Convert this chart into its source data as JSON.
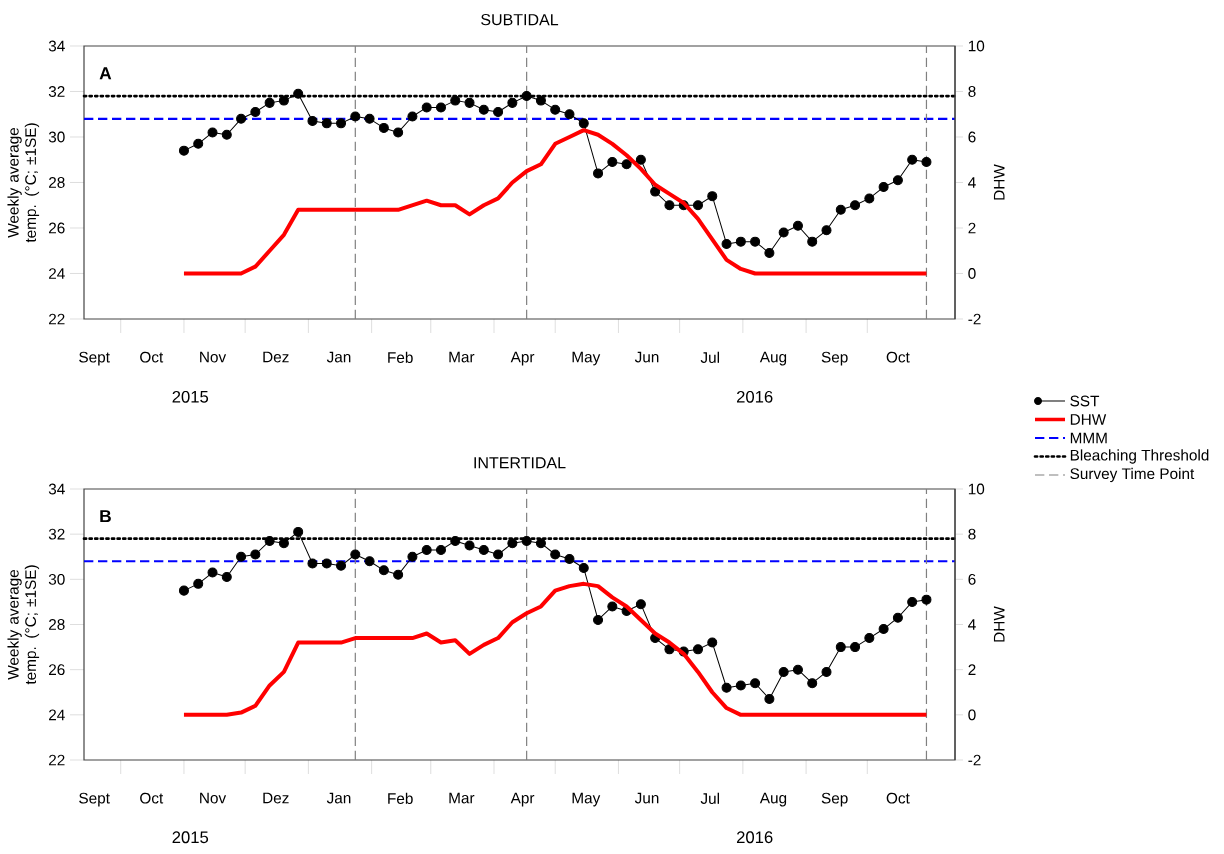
{
  "chart_data": [
    {
      "type": "line",
      "title": "SUBTIDAL",
      "ylabel": "Weekly average temp. (°C; ±1SE)",
      "y2label": "DHW",
      "annotations": [
        "A",
        "2015",
        "2016"
      ],
      "x": [
        "2015-11-01",
        "2015-11-08",
        "2015-11-15",
        "2015-11-22",
        "2015-11-29",
        "2015-12-06",
        "2015-12-13",
        "2015-12-20",
        "2015-12-27",
        "2016-01-03",
        "2016-01-10",
        "2016-01-17",
        "2016-01-24",
        "2016-01-31",
        "2016-02-07",
        "2016-02-14",
        "2016-02-21",
        "2016-02-28",
        "2016-03-06",
        "2016-03-13",
        "2016-03-20",
        "2016-03-27",
        "2016-04-03",
        "2016-04-10",
        "2016-04-17",
        "2016-04-24",
        "2016-05-01",
        "2016-05-08",
        "2016-05-15",
        "2016-05-22",
        "2016-05-29",
        "2016-06-05",
        "2016-06-12",
        "2016-06-19",
        "2016-06-26",
        "2016-07-03",
        "2016-07-10",
        "2016-07-17",
        "2016-07-24",
        "2016-07-31",
        "2016-08-07",
        "2016-08-14",
        "2016-08-21",
        "2016-08-28",
        "2016-09-04",
        "2016-09-11",
        "2016-09-18",
        "2016-09-25",
        "2016-10-02",
        "2016-10-09",
        "2016-10-16",
        "2016-10-23",
        "2016-10-30"
      ],
      "xlim": [
        "2015-09-13",
        "2016-11-13"
      ],
      "xticks": [
        {
          "value": "2015-10-01",
          "label": null
        },
        {
          "value": "2015-11-01",
          "label": null
        },
        {
          "value": "2015-12-01",
          "label": null
        },
        {
          "value": "2016-01-01",
          "label": null
        },
        {
          "value": "2016-02-01",
          "label": null
        },
        {
          "value": "2016-03-01",
          "label": null
        },
        {
          "value": "2016-04-01",
          "label": null
        },
        {
          "value": "2016-05-01",
          "label": null
        },
        {
          "value": "2016-06-01",
          "label": null
        },
        {
          "value": "2016-07-01",
          "label": null
        },
        {
          "value": "2016-08-01",
          "label": null
        },
        {
          "value": "2016-09-01",
          "label": null
        },
        {
          "value": "2016-10-01",
          "label": null
        },
        {
          "value": "2015-09-18",
          "label": "Sept"
        },
        {
          "value": "2015-10-16",
          "label": "Oct"
        },
        {
          "value": "2015-11-15",
          "label": "Nov"
        },
        {
          "value": "2015-12-16",
          "label": "Dez"
        },
        {
          "value": "2016-01-16",
          "label": "Jan"
        },
        {
          "value": "2016-02-15",
          "label": "Feb"
        },
        {
          "value": "2016-03-16",
          "label": "Mar"
        },
        {
          "value": "2016-04-15",
          "label": "Apr"
        },
        {
          "value": "2016-05-16",
          "label": "May"
        },
        {
          "value": "2016-06-15",
          "label": "Jun"
        },
        {
          "value": "2016-07-16",
          "label": "Jul"
        },
        {
          "value": "2016-08-16",
          "label": "Aug"
        },
        {
          "value": "2016-09-15",
          "label": "Sep"
        },
        {
          "value": "2016-10-16",
          "label": "Oct"
        }
      ],
      "ylim": [
        22,
        34
      ],
      "yticks": [
        22,
        24,
        26,
        28,
        30,
        32,
        34
      ],
      "y2lim": [
        -2,
        10
      ],
      "y2ticks": [
        -2,
        0,
        2,
        4,
        6,
        8,
        10
      ],
      "legend": "right",
      "series": [
        {
          "name": "SST",
          "color": "#000000",
          "marker": "circle",
          "values": [
            29.4,
            29.7,
            30.2,
            30.1,
            30.8,
            31.1,
            31.5,
            31.6,
            31.9,
            30.7,
            30.6,
            30.6,
            30.9,
            30.8,
            30.4,
            30.2,
            30.9,
            31.3,
            31.3,
            31.6,
            31.5,
            31.2,
            31.1,
            31.5,
            31.8,
            31.6,
            31.2,
            31.0,
            30.6,
            28.4,
            28.9,
            28.8,
            29.0,
            27.6,
            27.0,
            27.0,
            27.0,
            27.4,
            25.3,
            25.4,
            25.4,
            24.9,
            25.8,
            26.1,
            25.4,
            25.9,
            26.8,
            27.0,
            27.3,
            27.8,
            28.1,
            29.0,
            28.9
          ]
        },
        {
          "name": "DHW",
          "color": "#ff0000",
          "axis": "y2",
          "values": [
            0,
            0,
            0,
            0,
            0,
            0.3,
            1.0,
            1.7,
            2.8,
            2.8,
            2.8,
            2.8,
            2.8,
            2.8,
            2.8,
            2.8,
            3.0,
            3.2,
            3.0,
            3.0,
            2.6,
            3.0,
            3.3,
            4.0,
            4.5,
            4.8,
            5.7,
            6.0,
            6.3,
            6.1,
            5.7,
            5.2,
            4.6,
            3.9,
            3.5,
            3.1,
            2.4,
            1.5,
            0.6,
            0.2,
            0,
            0,
            0,
            0,
            0,
            0,
            0,
            0,
            0,
            0,
            0,
            0,
            0
          ]
        }
      ],
      "ref_lines": [
        {
          "axis": "y",
          "value": 30.8,
          "label": "MMM",
          "color": "#0000ff",
          "line_style": "dashed"
        },
        {
          "axis": "y",
          "value": 31.8,
          "label": "Bleaching Threshold",
          "color": "#000000",
          "line_style": "dotted"
        },
        {
          "axis": "x",
          "value": "2016-01-24",
          "label": "Survey Time Point",
          "color": "#808080",
          "line_style": "dashed"
        },
        {
          "axis": "x",
          "value": "2016-04-17",
          "color": "#808080",
          "line_style": "dashed"
        },
        {
          "axis": "x",
          "value": "2016-10-30",
          "color": "#808080",
          "line_style": "dashed"
        }
      ]
    },
    {
      "type": "line",
      "title": "INTERTIDAL",
      "ylabel": "Weekly average temp. (°C; ±1SE)",
      "y2label": "DHW",
      "annotations": [
        "B",
        "2015",
        "2016"
      ],
      "x": [
        "2015-11-01",
        "2015-11-08",
        "2015-11-15",
        "2015-11-22",
        "2015-11-29",
        "2015-12-06",
        "2015-12-13",
        "2015-12-20",
        "2015-12-27",
        "2016-01-03",
        "2016-01-10",
        "2016-01-17",
        "2016-01-24",
        "2016-01-31",
        "2016-02-07",
        "2016-02-14",
        "2016-02-21",
        "2016-02-28",
        "2016-03-06",
        "2016-03-13",
        "2016-03-20",
        "2016-03-27",
        "2016-04-03",
        "2016-04-10",
        "2016-04-17",
        "2016-04-24",
        "2016-05-01",
        "2016-05-08",
        "2016-05-15",
        "2016-05-22",
        "2016-05-29",
        "2016-06-05",
        "2016-06-12",
        "2016-06-19",
        "2016-06-26",
        "2016-07-03",
        "2016-07-10",
        "2016-07-17",
        "2016-07-24",
        "2016-07-31",
        "2016-08-07",
        "2016-08-14",
        "2016-08-21",
        "2016-08-28",
        "2016-09-04",
        "2016-09-11",
        "2016-09-18",
        "2016-09-25",
        "2016-10-02",
        "2016-10-09",
        "2016-10-16",
        "2016-10-23",
        "2016-10-30"
      ],
      "xlim": [
        "2015-09-13",
        "2016-11-13"
      ],
      "xticks": [
        {
          "value": "2015-10-01",
          "label": null
        },
        {
          "value": "2015-11-01",
          "label": null
        },
        {
          "value": "2015-12-01",
          "label": null
        },
        {
          "value": "2016-01-01",
          "label": null
        },
        {
          "value": "2016-02-01",
          "label": null
        },
        {
          "value": "2016-03-01",
          "label": null
        },
        {
          "value": "2016-04-01",
          "label": null
        },
        {
          "value": "2016-05-01",
          "label": null
        },
        {
          "value": "2016-06-01",
          "label": null
        },
        {
          "value": "2016-07-01",
          "label": null
        },
        {
          "value": "2016-08-01",
          "label": null
        },
        {
          "value": "2016-09-01",
          "label": null
        },
        {
          "value": "2016-10-01",
          "label": null
        },
        {
          "value": "2015-09-18",
          "label": "Sept"
        },
        {
          "value": "2015-10-16",
          "label": "Oct"
        },
        {
          "value": "2015-11-15",
          "label": "Nov"
        },
        {
          "value": "2015-12-16",
          "label": "Dez"
        },
        {
          "value": "2016-01-16",
          "label": "Jan"
        },
        {
          "value": "2016-02-15",
          "label": "Feb"
        },
        {
          "value": "2016-03-16",
          "label": "Mar"
        },
        {
          "value": "2016-04-15",
          "label": "Apr"
        },
        {
          "value": "2016-05-16",
          "label": "May"
        },
        {
          "value": "2016-06-15",
          "label": "Jun"
        },
        {
          "value": "2016-07-16",
          "label": "Jul"
        },
        {
          "value": "2016-08-16",
          "label": "Aug"
        },
        {
          "value": "2016-09-15",
          "label": "Sep"
        },
        {
          "value": "2016-10-16",
          "label": "Oct"
        }
      ],
      "ylim": [
        22,
        34
      ],
      "yticks": [
        22,
        24,
        26,
        28,
        30,
        32,
        34
      ],
      "y2lim": [
        -2,
        10
      ],
      "y2ticks": [
        -2,
        0,
        2,
        4,
        6,
        8,
        10
      ],
      "series": [
        {
          "color": "#000000",
          "marker": "circle",
          "values": [
            29.5,
            29.8,
            30.3,
            30.1,
            31.0,
            31.1,
            31.7,
            31.6,
            32.1,
            30.7,
            30.7,
            30.6,
            31.1,
            30.8,
            30.4,
            30.2,
            31.0,
            31.3,
            31.3,
            31.7,
            31.5,
            31.3,
            31.1,
            31.6,
            31.7,
            31.6,
            31.1,
            30.9,
            30.5,
            28.2,
            28.8,
            28.6,
            28.9,
            27.4,
            26.9,
            26.8,
            26.9,
            27.2,
            25.2,
            25.3,
            25.4,
            24.7,
            25.9,
            26.0,
            25.4,
            25.9,
            27.0,
            27.0,
            27.4,
            27.8,
            28.3,
            29.0,
            29.1
          ]
        },
        {
          "color": "#ff0000",
          "axis": "y2",
          "values": [
            0,
            0,
            0,
            0,
            0.1,
            0.4,
            1.3,
            1.9,
            3.2,
            3.2,
            3.2,
            3.2,
            3.4,
            3.4,
            3.4,
            3.4,
            3.4,
            3.6,
            3.2,
            3.3,
            2.7,
            3.1,
            3.4,
            4.1,
            4.5,
            4.8,
            5.5,
            5.7,
            5.8,
            5.7,
            5.2,
            4.8,
            4.2,
            3.6,
            3.2,
            2.7,
            1.9,
            1.0,
            0.3,
            0.0,
            0,
            0,
            0,
            0,
            0,
            0,
            0,
            0,
            0,
            0,
            0,
            0,
            0
          ]
        }
      ],
      "ref_lines": [
        {
          "axis": "y",
          "value": 30.8,
          "color": "#0000ff",
          "line_style": "dashed"
        },
        {
          "axis": "y",
          "value": 31.8,
          "color": "#000000",
          "line_style": "dotted"
        },
        {
          "axis": "x",
          "value": "2016-01-24",
          "color": "#808080",
          "line_style": "dashed"
        },
        {
          "axis": "x",
          "value": "2016-04-17",
          "color": "#808080",
          "line_style": "dashed"
        },
        {
          "axis": "x",
          "value": "2016-10-30",
          "color": "#808080",
          "line_style": "dashed"
        }
      ]
    }
  ]
}
